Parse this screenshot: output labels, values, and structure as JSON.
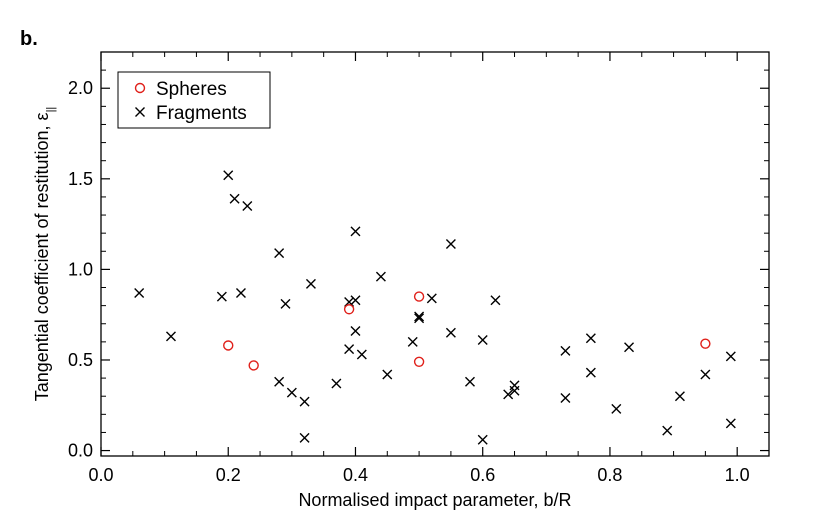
{
  "chart_data": {
    "type": "scatter",
    "panel_label": "b.",
    "title": "",
    "xlabel": "Normalised impact parameter, b/R",
    "ylabel": "Tangential coefficient of restitution, ε",
    "ylabel_subscript": "||",
    "xlim": [
      0.0,
      1.05
    ],
    "ylim": [
      -0.03,
      2.2
    ],
    "xticks": [
      0.0,
      0.2,
      0.4,
      0.6,
      0.8,
      1.0
    ],
    "xtick_labels": [
      "0.0",
      "0.2",
      "0.4",
      "0.6",
      "0.8",
      "1.0"
    ],
    "yticks": [
      0.0,
      0.5,
      1.0,
      1.5,
      2.0
    ],
    "ytick_labels": [
      "0.0",
      "0.5",
      "1.0",
      "1.5",
      "2.0"
    ],
    "grid": false,
    "legend_position": "top-left",
    "series": [
      {
        "name": "Spheres",
        "marker": "circle",
        "color": "#e0201a",
        "x": [
          0.2,
          0.24,
          0.39,
          0.5,
          0.5,
          0.95
        ],
        "y": [
          0.58,
          0.47,
          0.78,
          0.85,
          0.49,
          0.59
        ]
      },
      {
        "name": "Fragments",
        "marker": "x",
        "color": "#000000",
        "x": [
          0.06,
          0.11,
          0.19,
          0.2,
          0.21,
          0.22,
          0.23,
          0.28,
          0.28,
          0.29,
          0.3,
          0.32,
          0.32,
          0.33,
          0.37,
          0.39,
          0.39,
          0.4,
          0.4,
          0.4,
          0.41,
          0.44,
          0.45,
          0.49,
          0.5,
          0.5,
          0.52,
          0.55,
          0.55,
          0.58,
          0.6,
          0.6,
          0.62,
          0.64,
          0.65,
          0.65,
          0.73,
          0.73,
          0.77,
          0.77,
          0.81,
          0.83,
          0.89,
          0.91,
          0.95,
          0.99,
          0.99
        ],
        "y": [
          0.87,
          0.63,
          0.85,
          1.52,
          1.39,
          0.87,
          1.35,
          1.09,
          0.38,
          0.81,
          0.32,
          0.27,
          0.07,
          0.92,
          0.37,
          0.82,
          0.56,
          0.83,
          1.21,
          0.66,
          0.53,
          0.96,
          0.42,
          0.6,
          0.74,
          0.73,
          0.84,
          0.65,
          1.14,
          0.38,
          0.61,
          0.06,
          0.83,
          0.31,
          0.36,
          0.33,
          0.55,
          0.29,
          0.62,
          0.43,
          0.23,
          0.57,
          0.11,
          0.3,
          0.42,
          0.52,
          0.15
        ]
      }
    ]
  }
}
